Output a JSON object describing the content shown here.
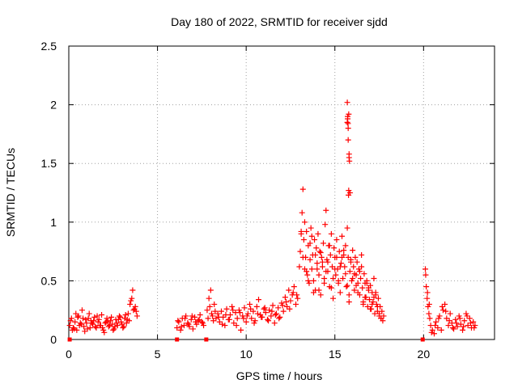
{
  "chart_data": {
    "type": "scatter",
    "title": "Day 180 of 2022, SRMTID for receiver sjdd",
    "xlabel": "GPS time / hours",
    "ylabel": "SRMTID / TECUs",
    "xlim": [
      0,
      24
    ],
    "ylim": [
      0,
      2.5
    ],
    "xticks": [
      0,
      5,
      10,
      15,
      20
    ],
    "yticks": [
      0,
      0.5,
      1,
      1.5,
      2,
      2.5
    ],
    "xtick_labels": [
      "0",
      "5",
      "10",
      "15",
      "20"
    ],
    "ytick_labels": [
      "0",
      "0.5",
      "1",
      "1.5",
      "2",
      "2.5"
    ],
    "marker": "+",
    "color": "#ff0000",
    "grid": true,
    "series": [
      {
        "name": "SRMTID",
        "x": [
          0.05,
          0.15,
          0.25,
          0.35,
          0.45,
          0.55,
          0.65,
          0.75,
          0.85,
          0.95,
          1.05,
          1.15,
          1.25,
          1.35,
          1.45,
          1.55,
          1.65,
          1.75,
          1.85,
          1.95,
          2.05,
          2.15,
          2.25,
          2.35,
          2.45,
          2.55,
          2.65,
          2.75,
          2.85,
          2.95,
          3.05,
          3.15,
          3.25,
          3.35,
          3.45,
          3.55,
          3.65,
          3.75,
          3.85,
          0.2,
          0.4,
          0.6,
          0.8,
          1.0,
          1.2,
          1.4,
          1.6,
          1.8,
          2.0,
          2.2,
          2.4,
          2.6,
          2.8,
          3.0,
          3.2,
          3.4,
          3.6,
          3.8,
          0.1,
          0.3,
          0.5,
          0.7,
          0.9,
          1.1,
          1.3,
          1.5,
          1.7,
          1.9,
          2.1,
          2.3,
          2.5,
          2.7,
          2.9,
          3.1,
          3.3,
          3.5,
          3.7,
          6.1,
          6.2,
          6.3,
          6.4,
          6.5,
          6.6,
          6.7,
          6.8,
          6.9,
          7.0,
          7.1,
          7.2,
          7.3,
          7.4,
          7.5,
          7.6,
          6.15,
          6.35,
          6.55,
          6.75,
          6.95,
          7.15,
          7.35,
          7.55,
          7.8,
          7.9,
          8.0,
          8.1,
          8.2,
          8.3,
          8.4,
          8.5,
          8.6,
          8.7,
          8.8,
          8.9,
          9.0,
          9.1,
          9.2,
          9.3,
          9.4,
          9.5,
          9.6,
          9.7,
          9.8,
          9.9,
          10.0,
          10.1,
          10.2,
          10.3,
          10.4,
          10.5,
          10.6,
          10.7,
          10.8,
          10.9,
          11.0,
          11.1,
          11.2,
          11.3,
          11.4,
          11.5,
          11.6,
          11.7,
          11.8,
          11.9,
          12.0,
          12.1,
          12.2,
          12.3,
          12.4,
          12.5,
          12.6,
          12.7,
          12.8,
          12.9,
          7.85,
          7.95,
          8.05,
          8.15,
          8.25,
          8.45,
          8.65,
          8.85,
          9.05,
          9.25,
          9.45,
          9.65,
          9.85,
          10.05,
          10.25,
          10.45,
          10.65,
          10.85,
          11.05,
          11.25,
          11.45,
          11.65,
          11.85,
          12.05,
          12.25,
          12.45,
          12.65,
          12.85,
          13.0,
          13.05,
          13.1,
          13.15,
          13.2,
          13.25,
          13.3,
          13.35,
          13.4,
          13.45,
          13.5,
          13.55,
          13.6,
          13.65,
          13.7,
          13.75,
          13.8,
          13.85,
          13.9,
          13.95,
          14.0,
          14.05,
          14.1,
          14.15,
          14.2,
          14.25,
          14.3,
          14.35,
          14.4,
          14.45,
          14.5,
          14.55,
          14.6,
          14.65,
          14.7,
          14.75,
          14.8,
          14.85,
          14.9,
          14.95,
          15.0,
          15.05,
          15.1,
          15.15,
          15.2,
          15.25,
          15.3,
          15.35,
          15.4,
          15.45,
          15.5,
          15.55,
          15.6,
          15.65,
          15.7,
          15.75,
          15.8,
          15.85,
          15.9,
          15.95,
          16.0,
          16.05,
          16.1,
          16.15,
          16.2,
          16.25,
          16.3,
          16.35,
          16.4,
          16.45,
          16.5,
          16.55,
          16.6,
          16.65,
          16.7,
          16.75,
          16.8,
          16.85,
          16.9,
          16.95,
          17.0,
          17.05,
          17.1,
          17.15,
          17.2,
          17.25,
          17.3,
          17.35,
          17.4,
          17.45,
          17.5,
          17.55,
          17.6,
          17.65,
          17.7,
          17.75,
          13.1,
          13.3,
          13.5,
          13.7,
          13.9,
          14.1,
          14.3,
          14.5,
          14.7,
          14.9,
          15.1,
          15.3,
          15.5,
          15.7,
          15.9,
          16.1,
          16.3,
          16.5,
          16.7,
          16.9,
          17.1,
          17.3,
          17.5,
          13.2,
          13.4,
          13.6,
          13.8,
          14.0,
          14.2,
          14.4,
          14.6,
          14.8,
          15.0,
          15.2,
          15.4,
          15.6,
          15.8,
          16.0,
          16.2,
          16.4,
          16.6,
          16.8,
          17.0,
          17.2,
          17.4,
          17.6,
          15.7,
          15.72,
          15.75,
          15.78,
          15.8,
          15.82,
          15.85,
          15.7,
          15.75,
          15.8,
          15.72,
          15.78,
          15.74,
          15.77,
          20.1,
          20.15,
          20.2,
          20.25,
          20.3,
          20.35,
          20.4,
          20.5,
          20.6,
          20.7,
          20.8,
          20.9,
          21.0,
          21.1,
          21.2,
          21.3,
          21.4,
          21.5,
          21.6,
          21.7,
          21.8,
          21.9,
          22.0,
          22.1,
          22.2,
          22.3,
          22.4,
          22.5,
          22.6,
          22.7,
          22.8,
          22.9,
          20.12,
          20.22,
          20.32,
          20.45,
          20.65,
          20.85,
          21.05,
          21.25,
          21.45,
          21.65,
          21.85,
          22.05,
          22.25,
          22.45,
          22.65,
          22.85
        ],
        "y": [
          0.12,
          0.18,
          0.1,
          0.15,
          0.08,
          0.2,
          0.14,
          0.25,
          0.11,
          0.17,
          0.09,
          0.22,
          0.16,
          0.13,
          0.19,
          0.1,
          0.15,
          0.12,
          0.21,
          0.08,
          0.14,
          0.18,
          0.11,
          0.16,
          0.13,
          0.09,
          0.17,
          0.12,
          0.2,
          0.15,
          0.1,
          0.18,
          0.14,
          0.22,
          0.3,
          0.35,
          0.25,
          0.28,
          0.2,
          0.08,
          0.22,
          0.12,
          0.18,
          0.14,
          0.1,
          0.16,
          0.2,
          0.12,
          0.06,
          0.15,
          0.19,
          0.11,
          0.17,
          0.13,
          0.21,
          0.16,
          0.42,
          0.24,
          0.16,
          0.09,
          0.19,
          0.13,
          0.07,
          0.18,
          0.14,
          0.11,
          0.17,
          0.1,
          0.15,
          0.12,
          0.08,
          0.14,
          0.19,
          0.11,
          0.17,
          0.33,
          0.26,
          0.1,
          0.15,
          0.08,
          0.18,
          0.12,
          0.2,
          0.14,
          0.11,
          0.17,
          0.09,
          0.19,
          0.13,
          0.16,
          0.21,
          0.15,
          0.12,
          0.16,
          0.11,
          0.18,
          0.13,
          0.2,
          0.15,
          0.17,
          0.14,
          0.25,
          0.35,
          0.42,
          0.2,
          0.3,
          0.18,
          0.22,
          0.15,
          0.24,
          0.19,
          0.12,
          0.26,
          0.17,
          0.21,
          0.28,
          0.14,
          0.23,
          0.18,
          0.25,
          0.08,
          0.2,
          0.27,
          0.15,
          0.22,
          0.3,
          0.18,
          0.24,
          0.16,
          0.28,
          0.34,
          0.21,
          0.19,
          0.26,
          0.23,
          0.17,
          0.25,
          0.2,
          0.29,
          0.14,
          0.22,
          0.27,
          0.19,
          0.31,
          0.24,
          0.36,
          0.28,
          0.42,
          0.33,
          0.38,
          0.45,
          0.3,
          0.35,
          0.18,
          0.28,
          0.22,
          0.16,
          0.24,
          0.19,
          0.13,
          0.21,
          0.17,
          0.25,
          0.12,
          0.23,
          0.18,
          0.2,
          0.26,
          0.14,
          0.22,
          0.19,
          0.27,
          0.16,
          0.24,
          0.21,
          0.18,
          0.29,
          0.32,
          0.26,
          0.4,
          0.38,
          0.62,
          0.75,
          0.9,
          1.08,
          1.28,
          0.85,
          1.0,
          0.7,
          0.92,
          0.55,
          0.8,
          0.48,
          0.68,
          0.95,
          0.6,
          0.72,
          0.5,
          0.85,
          0.42,
          0.78,
          0.65,
          0.9,
          0.55,
          0.75,
          0.38,
          0.7,
          0.62,
          0.82,
          0.48,
          0.98,
          1.1,
          0.68,
          0.58,
          0.8,
          0.45,
          0.72,
          0.9,
          0.62,
          0.35,
          0.78,
          0.7,
          0.55,
          0.85,
          0.6,
          0.48,
          0.75,
          0.4,
          0.65,
          0.88,
          0.52,
          0.72,
          0.62,
          0.8,
          0.45,
          0.95,
          0.7,
          0.38,
          0.58,
          0.68,
          0.5,
          0.76,
          0.62,
          0.42,
          0.7,
          0.55,
          0.66,
          0.48,
          0.6,
          0.38,
          0.52,
          0.72,
          0.44,
          0.3,
          0.56,
          0.48,
          0.36,
          0.5,
          0.28,
          0.42,
          0.34,
          0.46,
          0.26,
          0.4,
          0.32,
          0.52,
          0.22,
          0.38,
          0.3,
          0.24,
          0.35,
          0.2,
          0.28,
          0.18,
          0.24,
          0.16,
          0.2,
          0.92,
          0.6,
          0.5,
          0.88,
          0.72,
          0.42,
          0.66,
          0.58,
          0.8,
          0.52,
          0.7,
          0.62,
          0.76,
          0.46,
          0.66,
          0.56,
          0.4,
          0.62,
          0.36,
          0.44,
          0.3,
          0.4,
          0.22,
          0.7,
          0.58,
          0.82,
          0.4,
          0.6,
          0.74,
          0.52,
          0.66,
          0.44,
          0.6,
          0.5,
          0.7,
          0.56,
          0.32,
          0.52,
          0.46,
          0.58,
          0.32,
          0.48,
          0.26,
          0.36,
          0.28,
          0.18,
          2.02,
          1.88,
          1.8,
          1.92,
          1.58,
          1.52,
          1.25,
          1.85,
          1.7,
          1.55,
          1.9,
          1.27,
          1.84,
          1.23,
          0.6,
          0.45,
          0.35,
          0.28,
          0.22,
          0.18,
          0.12,
          0.08,
          0.05,
          0.15,
          0.1,
          0.2,
          0.08,
          0.25,
          0.3,
          0.18,
          0.12,
          0.22,
          0.14,
          0.09,
          0.17,
          0.11,
          0.2,
          0.13,
          0.08,
          0.16,
          0.22,
          0.12,
          0.18,
          0.1,
          0.15,
          0.12,
          0.55,
          0.4,
          0.3,
          0.06,
          0.12,
          0.18,
          0.28,
          0.24,
          0.16,
          0.1,
          0.14,
          0.18,
          0.11,
          0.2,
          0.14,
          0.1
        ],
        "markers_at_zero": [
          0.05,
          6.1,
          7.75,
          19.95
        ]
      }
    ]
  }
}
